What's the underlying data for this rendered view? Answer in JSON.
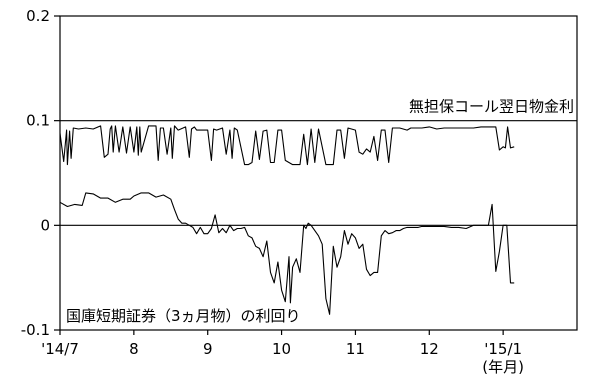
{
  "chart_data": {
    "type": "line",
    "title": "",
    "xlabel": "",
    "ylabel": "",
    "ylim": [
      -0.1,
      0.2
    ],
    "yticks": [
      {
        "value": 0.2,
        "label": "0.2"
      },
      {
        "value": 0.1,
        "label": "0.1"
      },
      {
        "value": 0,
        "label": "0"
      },
      {
        "value": -0.1,
        "label": "-0.1"
      }
    ],
    "xlim": [
      0,
      7
    ],
    "xticks": [
      {
        "value": 0,
        "label": "'14/7"
      },
      {
        "value": 1,
        "label": "8"
      },
      {
        "value": 2,
        "label": "9"
      },
      {
        "value": 3,
        "label": "10"
      },
      {
        "value": 4,
        "label": "11"
      },
      {
        "value": 5,
        "label": "12"
      },
      {
        "value": 6,
        "label": "'15/1"
      }
    ],
    "x_unit_label": "(年月)",
    "reference_lines": [
      0.1,
      0
    ],
    "series": [
      {
        "name": "無担保コール翌日物金利",
        "color": "#000000",
        "x": [
          0,
          0.05,
          0.09,
          0.1,
          0.13,
          0.15,
          0.18,
          0.25,
          0.35,
          0.45,
          0.55,
          0.6,
          0.65,
          0.68,
          0.7,
          0.72,
          0.75,
          0.8,
          0.85,
          0.9,
          0.95,
          1,
          1.04,
          1.06,
          1.08,
          1.1,
          1.2,
          1.3,
          1.33,
          1.36,
          1.4,
          1.45,
          1.5,
          1.52,
          1.55,
          1.6,
          1.7,
          1.75,
          1.78,
          1.82,
          1.85,
          2,
          2.05,
          2.08,
          2.12,
          2.2,
          2.25,
          2.3,
          2.33,
          2.36,
          2.4,
          2.5,
          2.55,
          2.6,
          2.65,
          2.7,
          2.75,
          2.8,
          2.85,
          2.9,
          2.95,
          3,
          3.05,
          3.15,
          3.25,
          3.3,
          3.35,
          3.4,
          3.45,
          3.5,
          3.6,
          3.7,
          3.75,
          3.8,
          3.85,
          3.9,
          4,
          4.05,
          4.1,
          4.15,
          4.2,
          4.25,
          4.3,
          4.35,
          4.4,
          4.45,
          4.5,
          4.55,
          4.6,
          4.7,
          4.75,
          4.8,
          4.9,
          5,
          5.1,
          5.2,
          5.3,
          5.4,
          5.5,
          5.6,
          5.7,
          5.8,
          5.9,
          5.95,
          6,
          6.03,
          6.06,
          6.1,
          6.15
        ],
        "values": [
          0.088,
          0.061,
          0.091,
          0.058,
          0.09,
          0.064,
          0.093,
          0.092,
          0.093,
          0.092,
          0.095,
          0.065,
          0.068,
          0.092,
          0.095,
          0.07,
          0.095,
          0.07,
          0.094,
          0.069,
          0.094,
          0.07,
          0.094,
          0.067,
          0.094,
          0.07,
          0.095,
          0.095,
          0.062,
          0.093,
          0.093,
          0.068,
          0.093,
          0.064,
          0.095,
          0.091,
          0.094,
          0.065,
          0.092,
          0.094,
          0.091,
          0.091,
          0.062,
          0.092,
          0.091,
          0.093,
          0.068,
          0.091,
          0.064,
          0.093,
          0.091,
          0.058,
          0.058,
          0.06,
          0.09,
          0.063,
          0.09,
          0.091,
          0.06,
          0.06,
          0.091,
          0.091,
          0.062,
          0.058,
          0.058,
          0.087,
          0.058,
          0.092,
          0.06,
          0.092,
          0.058,
          0.058,
          0.091,
          0.091,
          0.064,
          0.093,
          0.091,
          0.07,
          0.068,
          0.073,
          0.07,
          0.085,
          0.062,
          0.091,
          0.091,
          0.06,
          0.093,
          0.093,
          0.093,
          0.091,
          0.093,
          0.093,
          0.093,
          0.094,
          0.092,
          0.093,
          0.093,
          0.093,
          0.093,
          0.093,
          0.094,
          0.094,
          0.094,
          0.072,
          0.075,
          0.074,
          0.094,
          0.074,
          0.075
        ]
      },
      {
        "name": "国庫短期証券（3ヵ月物）の利回り",
        "color": "#000000",
        "x": [
          0,
          0.1,
          0.2,
          0.3,
          0.35,
          0.45,
          0.55,
          0.65,
          0.75,
          0.85,
          0.95,
          1,
          1.1,
          1.2,
          1.3,
          1.4,
          1.5,
          1.55,
          1.6,
          1.65,
          1.7,
          1.75,
          1.8,
          1.85,
          1.9,
          1.95,
          2,
          2.05,
          2.1,
          2.15,
          2.2,
          2.25,
          2.3,
          2.35,
          2.4,
          2.45,
          2.5,
          2.55,
          2.6,
          2.65,
          2.7,
          2.75,
          2.8,
          2.85,
          2.9,
          2.95,
          3,
          3.05,
          3.1,
          3.12,
          3.15,
          3.2,
          3.25,
          3.3,
          3.33,
          3.36,
          3.4,
          3.45,
          3.5,
          3.55,
          3.6,
          3.65,
          3.7,
          3.75,
          3.8,
          3.85,
          3.9,
          3.95,
          4,
          4.05,
          4.1,
          4.15,
          4.2,
          4.25,
          4.3,
          4.35,
          4.4,
          4.45,
          4.5,
          4.55,
          4.6,
          4.65,
          4.7,
          4.75,
          4.8,
          4.85,
          4.9,
          4.95,
          5,
          5.1,
          5.2,
          5.3,
          5.4,
          5.5,
          5.6,
          5.7,
          5.8,
          5.85,
          5.9,
          5.95,
          6,
          6.05,
          6.1,
          6.15
        ],
        "values": [
          0.022,
          0.018,
          0.02,
          0.019,
          0.031,
          0.03,
          0.026,
          0.026,
          0.022,
          0.025,
          0.025,
          0.028,
          0.031,
          0.031,
          0.027,
          0.029,
          0.025,
          0.015,
          0.006,
          0.002,
          0.002,
          0.0,
          -0.002,
          -0.008,
          -0.002,
          -0.008,
          -0.008,
          -0.003,
          0.01,
          -0.007,
          -0.003,
          -0.007,
          0.0,
          -0.005,
          -0.003,
          -0.003,
          -0.002,
          -0.01,
          -0.012,
          -0.02,
          -0.022,
          -0.03,
          -0.015,
          -0.045,
          -0.055,
          -0.035,
          -0.062,
          -0.073,
          -0.03,
          -0.074,
          -0.04,
          -0.032,
          -0.045,
          0.0,
          -0.003,
          0.002,
          0.0,
          -0.005,
          -0.01,
          -0.018,
          -0.07,
          -0.085,
          -0.02,
          -0.04,
          -0.03,
          -0.005,
          -0.018,
          -0.008,
          -0.012,
          -0.022,
          -0.018,
          -0.042,
          -0.048,
          -0.045,
          -0.045,
          -0.01,
          -0.005,
          -0.008,
          -0.007,
          -0.005,
          -0.005,
          -0.003,
          -0.002,
          -0.002,
          -0.002,
          -0.002,
          -0.001,
          -0.001,
          -0.001,
          -0.001,
          -0.001,
          -0.002,
          -0.002,
          -0.003,
          0.0,
          0.0,
          0.0,
          0.02,
          -0.044,
          -0.025,
          0.0,
          0.0,
          -0.055,
          -0.055
        ]
      }
    ],
    "annotations": [
      {
        "text": "無担保コール翌日物金利",
        "series": 0
      },
      {
        "text": "国庫短期証券（3ヵ月物）の利回り",
        "series": 1
      }
    ]
  }
}
